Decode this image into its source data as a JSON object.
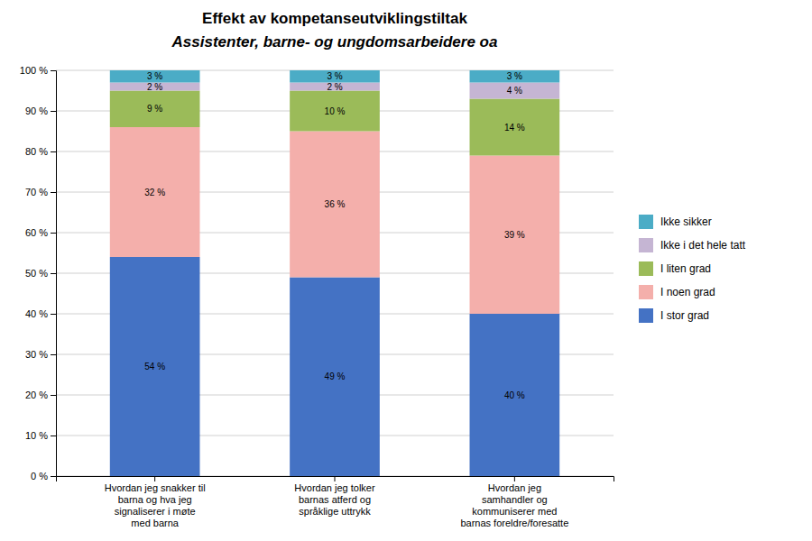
{
  "chart_data": {
    "type": "bar",
    "stacked": true,
    "title": "Effekt av kompetanseutviklingstiltak",
    "subtitle": "Assistenter, barne- og ungdomsarbeidere oa",
    "categories": [
      "Hvordan jeg snakker til\nbarna og hva jeg\nsignaliserer i møte\nmed barna",
      "Hvordan jeg tolker\nbarnas atferd og\nspråklige uttrykk",
      "Hvordan jeg\nsamhandler og\nkommuniserer med\nbarnas foreldre/foresatte"
    ],
    "series": [
      {
        "name": "I stor grad",
        "color": "#4472C4",
        "values": [
          54,
          49,
          40
        ],
        "value_labels": [
          "54 %",
          "49 %",
          "40 %"
        ]
      },
      {
        "name": "I noen grad",
        "color": "#F4AFAB",
        "values": [
          32,
          36,
          39
        ],
        "value_labels": [
          "32 %",
          "36 %",
          "39 %"
        ]
      },
      {
        "name": "I liten grad",
        "color": "#9BBB59",
        "values": [
          9,
          10,
          14
        ],
        "value_labels": [
          "9 %",
          "10 %",
          "14 %"
        ]
      },
      {
        "name": "Ikke i det hele tatt",
        "color": "#C5B5D3",
        "values": [
          2,
          2,
          4
        ],
        "value_labels": [
          "2 %",
          "2 %",
          "4 %"
        ]
      },
      {
        "name": "Ikke sikker",
        "color": "#4BACC6",
        "values": [
          3,
          3,
          3
        ],
        "value_labels": [
          "3 %",
          "3 %",
          "3 %"
        ]
      }
    ],
    "ylim": [
      0,
      100
    ],
    "yticks": [
      {
        "value": 0,
        "label": "0 %"
      },
      {
        "value": 10,
        "label": "10 %"
      },
      {
        "value": 20,
        "label": "20 %"
      },
      {
        "value": 30,
        "label": "30 %"
      },
      {
        "value": 40,
        "label": "40 %"
      },
      {
        "value": 50,
        "label": "50 %"
      },
      {
        "value": 60,
        "label": "60 %"
      },
      {
        "value": 70,
        "label": "70 %"
      },
      {
        "value": 80,
        "label": "80 %"
      },
      {
        "value": 90,
        "label": "90 %"
      },
      {
        "value": 100,
        "label": "100 %"
      }
    ],
    "grid": true,
    "legend": "right",
    "data_labels": true
  }
}
